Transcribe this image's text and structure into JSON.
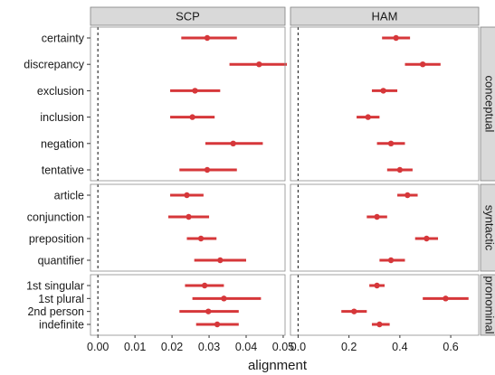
{
  "chart_data": {
    "type": "dot-interval",
    "xlabel": "alignment",
    "point_color": "#d6373a",
    "columns": [
      {
        "name": "SCP",
        "xlim": [
          -0.002,
          0.0505
        ],
        "ticks": [
          0.0,
          0.01,
          0.02,
          0.03,
          0.04,
          0.05
        ],
        "tick_labels": [
          "0.00",
          "0.01",
          "0.02",
          "0.03",
          "0.04",
          "0.05"
        ]
      },
      {
        "name": "HAM",
        "xlim": [
          -0.03,
          0.71
        ],
        "ticks": [
          0.0,
          0.2,
          0.4,
          0.6
        ],
        "tick_labels": [
          "0.0",
          "0.2",
          "0.4",
          "0.6"
        ]
      }
    ],
    "rows": [
      {
        "name": "conceptual",
        "categories": [
          "certainty",
          "discrepancy",
          "exclusion",
          "inclusion",
          "negation",
          "tentative"
        ],
        "SCP": {
          "mean": [
            0.0295,
            0.0435,
            0.0262,
            0.0255,
            0.0365,
            0.0295
          ],
          "lower": [
            0.0225,
            0.0355,
            0.0195,
            0.0195,
            0.029,
            0.022
          ],
          "upper": [
            0.0375,
            0.051,
            0.033,
            0.0315,
            0.0445,
            0.0375
          ]
        },
        "HAM": {
          "mean": [
            0.385,
            0.49,
            0.335,
            0.275,
            0.365,
            0.4
          ],
          "lower": [
            0.33,
            0.42,
            0.29,
            0.23,
            0.31,
            0.35
          ],
          "upper": [
            0.44,
            0.56,
            0.39,
            0.32,
            0.42,
            0.45
          ]
        }
      },
      {
        "name": "syntactic",
        "categories": [
          "article",
          "conjunction",
          "preposition",
          "quantifier"
        ],
        "SCP": {
          "mean": [
            0.024,
            0.0245,
            0.0278,
            0.033
          ],
          "lower": [
            0.0195,
            0.019,
            0.024,
            0.026
          ],
          "upper": [
            0.0285,
            0.03,
            0.032,
            0.04
          ]
        },
        "HAM": {
          "mean": [
            0.43,
            0.31,
            0.505,
            0.365
          ],
          "lower": [
            0.39,
            0.27,
            0.46,
            0.32
          ],
          "upper": [
            0.47,
            0.35,
            0.55,
            0.42
          ]
        }
      },
      {
        "name": "pronominal",
        "categories": [
          "1st singular",
          "1st plural",
          "2nd person",
          "indefinite"
        ],
        "SCP": {
          "mean": [
            0.0288,
            0.034,
            0.0298,
            0.0322
          ],
          "lower": [
            0.0235,
            0.0255,
            0.022,
            0.0265
          ],
          "upper": [
            0.034,
            0.044,
            0.038,
            0.038
          ]
        },
        "HAM": {
          "mean": [
            0.31,
            0.58,
            0.22,
            0.32
          ],
          "lower": [
            0.28,
            0.49,
            0.17,
            0.29
          ],
          "upper": [
            0.34,
            0.67,
            0.27,
            0.36
          ]
        }
      }
    ],
    "reference_line": 0,
    "grid": false
  }
}
